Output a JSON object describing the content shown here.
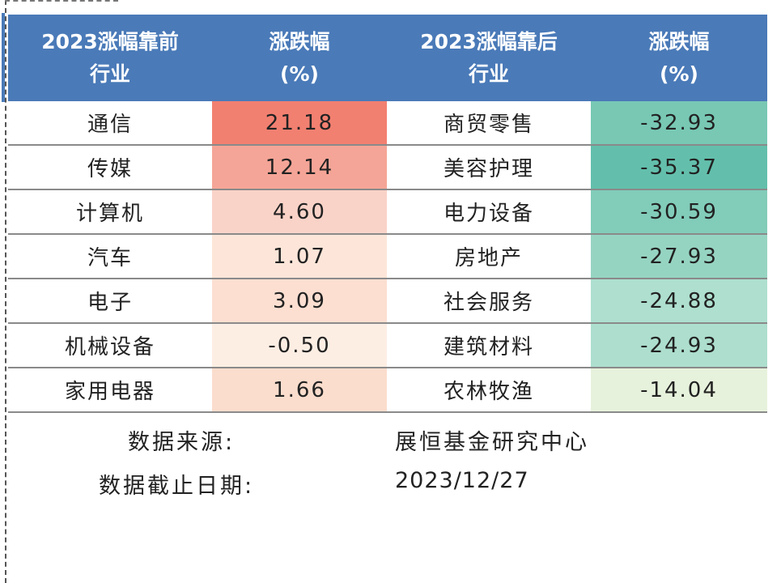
{
  "table": {
    "headers": {
      "top_industry": [
        "2023涨幅靠前",
        "行业"
      ],
      "top_change": [
        "涨跌幅",
        "(%)"
      ],
      "bottom_industry": [
        "2023涨幅靠后",
        "行业"
      ],
      "bottom_change": [
        "涨跌幅",
        "(%)"
      ]
    },
    "rows": [
      {
        "top_name": "通信",
        "top_value": "21.18",
        "bottom_name": "商贸零售",
        "bottom_value": "-32.93"
      },
      {
        "top_name": "传媒",
        "top_value": "12.14",
        "bottom_name": "美容护理",
        "bottom_value": "-35.37"
      },
      {
        "top_name": "计算机",
        "top_value": "4.60",
        "bottom_name": "电力设备",
        "bottom_value": "-30.59"
      },
      {
        "top_name": "汽车",
        "top_value": "1.07",
        "bottom_name": "房地产",
        "bottom_value": "-27.93"
      },
      {
        "top_name": "电子",
        "top_value": "3.09",
        "bottom_name": "社会服务",
        "bottom_value": "-24.88"
      },
      {
        "top_name": "机械设备",
        "top_value": "-0.50",
        "bottom_name": "建筑材料",
        "bottom_value": "-24.93"
      },
      {
        "top_name": "家用电器",
        "top_value": "1.66",
        "bottom_name": "农林牧渔",
        "bottom_value": "-14.04"
      }
    ],
    "colors": {
      "header_bg": "#4a7ab8",
      "top_value_fills": [
        "#f28071",
        "#f5a597",
        "#fad3c8",
        "#fde6d9",
        "#fcdfd1",
        "#fdeee4",
        "#fbddcd"
      ],
      "bottom_value_fills": [
        "#78c8b4",
        "#63bfac",
        "#82ccba",
        "#96d4c2",
        "#aedfcf",
        "#addece",
        "#e7f2dc"
      ]
    }
  },
  "footer": {
    "source_label": "数据来源:",
    "source_value": "展恒基金研究中心",
    "date_label": "数据截止日期:",
    "date_value": "2023/12/27"
  }
}
